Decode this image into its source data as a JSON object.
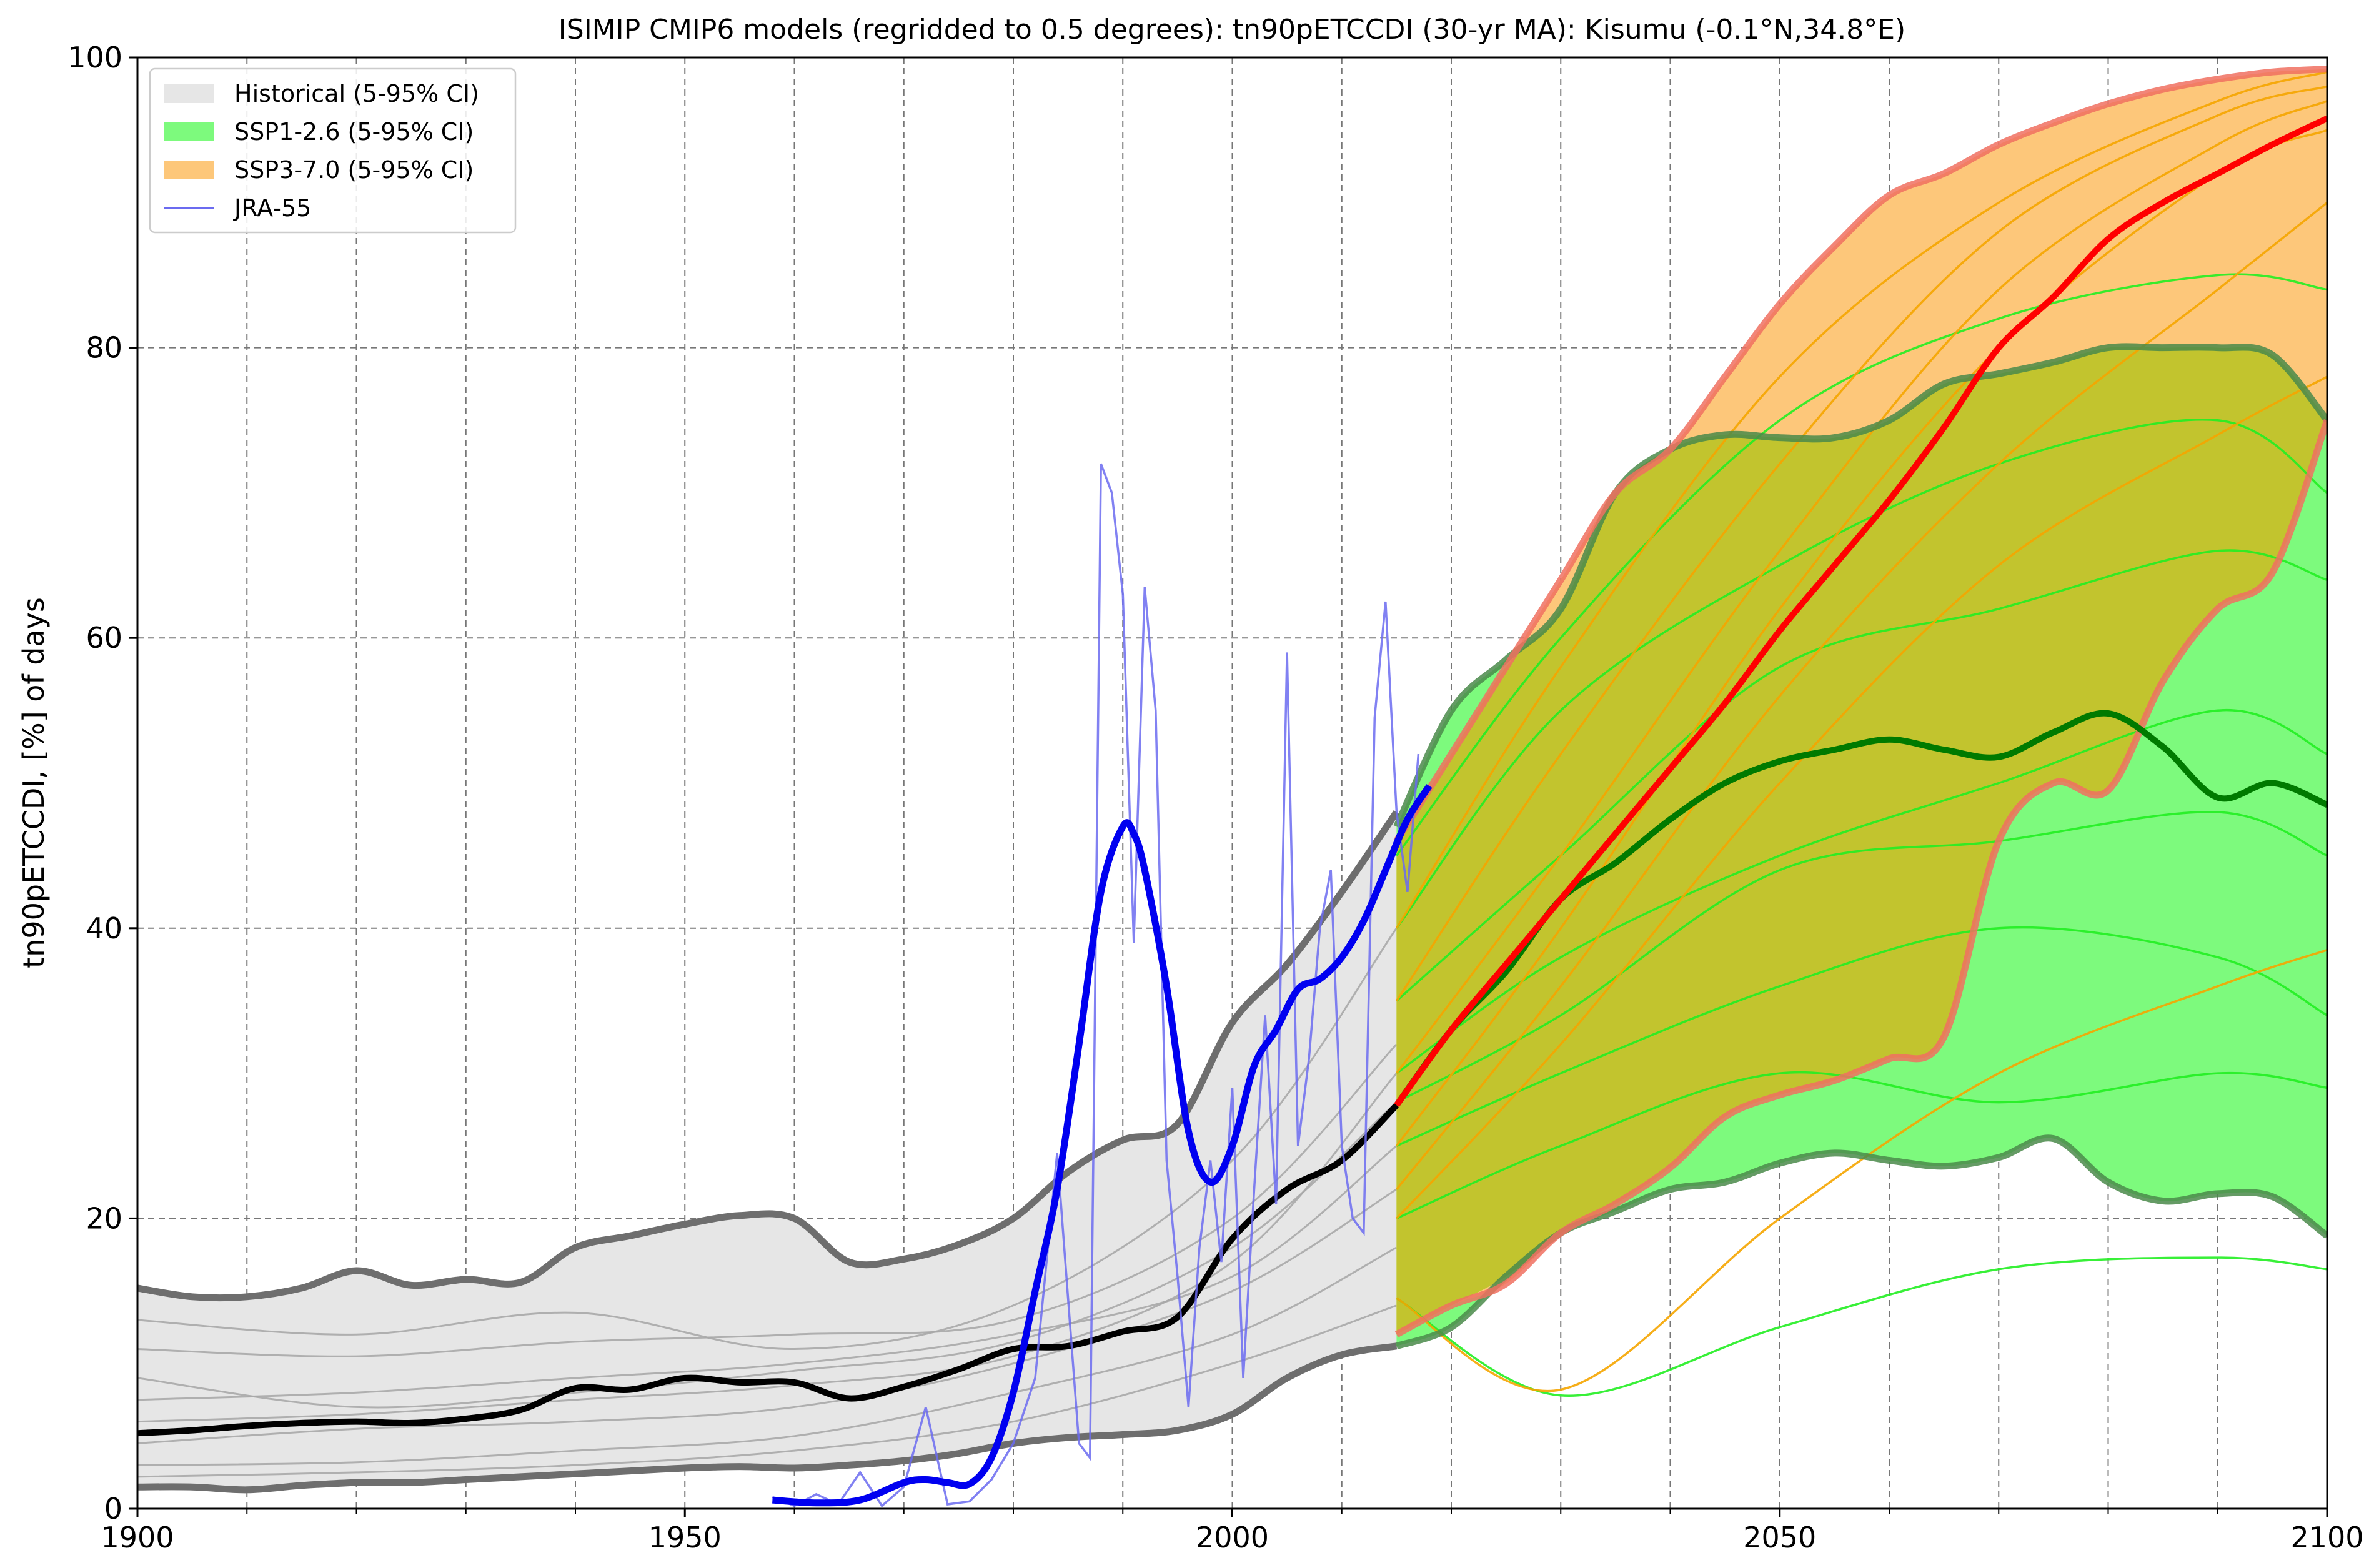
{
  "chart_data": {
    "type": "area",
    "title": "ISIMIP CMIP6 models (regridded to 0.5 degrees): tn90pETCCDI (30-yr MA): Kisumu (-0.1°N,34.8°E)",
    "xlabel": "",
    "ylabel": "tn90pETCCDI, [%] of days",
    "xlim": [
      1900,
      2100
    ],
    "ylim": [
      0,
      100
    ],
    "xticks": [
      1900,
      1950,
      2000,
      2050,
      2100
    ],
    "yticks": [
      0,
      20,
      40,
      60,
      80,
      100
    ],
    "x_minor_grid_step": 10,
    "grid": true,
    "legend_position": "top-left",
    "legend": [
      {
        "label": "Historical (5-95% CI)",
        "kind": "patch",
        "color": "#e6e6e6"
      },
      {
        "label": "SSP1-2.6 (5-95% CI)",
        "kind": "patch",
        "color": "#7dfa7d"
      },
      {
        "label": "SSP3-7.0 (5-95% CI)",
        "kind": "patch",
        "color": "#fdc77a"
      },
      {
        "label": "JRA-55",
        "kind": "line",
        "color": "#6b6bf0"
      }
    ],
    "colors": {
      "historical_fill": "#e6e6e6",
      "historical_edge": "#6e6e6e",
      "historical_members": "#a8a8a8",
      "historical_median": "#000000",
      "ssp126_fill": "#7dfa7d",
      "ssp126_edge": "#4a8a4a",
      "ssp126_members": "#22ee22",
      "ssp126_median": "#007a00",
      "ssp370_fill": "#fdc77a",
      "ssp370_edge": "#f07060",
      "ssp370_members": "#f5a500",
      "ssp370_median": "#ff0000",
      "overlap_fill": "#c2c42e",
      "jra55_raw": "#6b6bf0",
      "jra55_smooth": "#0000f0"
    },
    "historical": {
      "x": [
        1900,
        1905,
        1910,
        1915,
        1920,
        1925,
        1930,
        1935,
        1940,
        1945,
        1950,
        1955,
        1960,
        1965,
        1970,
        1975,
        1980,
        1985,
        1990,
        1995,
        2000,
        2005,
        2010,
        2015
      ],
      "p5": [
        1.5,
        1.5,
        1.3,
        1.6,
        1.8,
        1.8,
        2.0,
        2.2,
        2.4,
        2.6,
        2.8,
        2.9,
        2.8,
        3.0,
        3.3,
        3.8,
        4.5,
        4.9,
        5.1,
        5.4,
        6.5,
        9.0,
        10.6,
        11.2
      ],
      "p95": [
        15.2,
        14.6,
        14.6,
        15.2,
        16.4,
        15.4,
        15.8,
        15.6,
        18.0,
        18.8,
        19.6,
        20.2,
        20.0,
        17.0,
        17.2,
        18.2,
        20.0,
        23.2,
        25.4,
        26.5,
        33.5,
        37.5,
        42.5,
        48.0
      ],
      "median": [
        5.2,
        5.4,
        5.7,
        5.9,
        6.0,
        5.9,
        6.2,
        6.8,
        8.3,
        8.2,
        9.0,
        8.7,
        8.7,
        7.6,
        8.4,
        9.6,
        11.0,
        11.2,
        12.2,
        13.2,
        18.6,
        22.0,
        24.0,
        27.8
      ]
    },
    "ssp126": {
      "x": [
        2015,
        2020,
        2025,
        2030,
        2035,
        2040,
        2045,
        2050,
        2055,
        2060,
        2065,
        2070,
        2075,
        2080,
        2085,
        2090,
        2095,
        2100
      ],
      "p5": [
        11.2,
        12.5,
        16.0,
        19.0,
        20.5,
        22.0,
        22.5,
        23.8,
        24.5,
        24.0,
        23.6,
        24.2,
        25.5,
        22.5,
        21.2,
        21.7,
        21.5,
        18.8
      ],
      "p95": [
        47.0,
        55.0,
        58.5,
        62.0,
        70.0,
        73.0,
        74.0,
        73.8,
        73.8,
        75.0,
        77.5,
        78.2,
        79.0,
        80.0,
        80.0,
        80.0,
        79.5,
        75.0
      ],
      "median": [
        27.8,
        33.0,
        37.0,
        42.0,
        44.5,
        47.5,
        50.0,
        51.5,
        52.3,
        53.0,
        52.3,
        51.8,
        53.5,
        54.8,
        52.5,
        49.0,
        50.0,
        48.5
      ]
    },
    "ssp370": {
      "x": [
        2015,
        2020,
        2025,
        2030,
        2035,
        2040,
        2045,
        2050,
        2055,
        2060,
        2065,
        2070,
        2075,
        2080,
        2085,
        2090,
        2095,
        2100
      ],
      "p5": [
        12.0,
        14.0,
        15.5,
        19.0,
        21.0,
        23.5,
        27.0,
        28.5,
        29.5,
        31.0,
        32.5,
        46.0,
        50.0,
        49.5,
        57.0,
        62.0,
        64.5,
        75.0
      ],
      "p95": [
        46.0,
        52.0,
        58.0,
        64.0,
        70.0,
        73.0,
        78.0,
        83.0,
        87.0,
        90.5,
        92.0,
        94.0,
        95.5,
        96.8,
        97.8,
        98.5,
        99.0,
        99.2
      ],
      "median": [
        27.8,
        33.0,
        37.5,
        42.0,
        46.5,
        51.0,
        55.5,
        60.5,
        65.0,
        69.5,
        74.5,
        80.0,
        83.5,
        87.5,
        90.0,
        92.0,
        94.0,
        95.8
      ]
    },
    "jra55": {
      "x": [
        1958,
        1960,
        1962,
        1964,
        1966,
        1968,
        1970,
        1972,
        1974,
        1976,
        1978,
        1980,
        1982,
        1984,
        1986,
        1987,
        1988,
        1989,
        1990,
        1991,
        1992,
        1993,
        1994,
        1995,
        1996,
        1997,
        1998,
        1999,
        2000,
        2001,
        2002,
        2003,
        2004,
        2005,
        2006,
        2007,
        2008,
        2009,
        2010,
        2011,
        2012,
        2013,
        2014,
        2015,
        2016,
        2017
      ],
      "values": [
        0.8,
        0.2,
        1.0,
        0.3,
        2.5,
        0.2,
        1.5,
        7.0,
        0.3,
        0.5,
        2.0,
        4.5,
        9.0,
        24.5,
        4.5,
        3.5,
        72.0,
        70.0,
        63.0,
        39.0,
        63.5,
        55.0,
        24.0,
        16.0,
        7.0,
        18.0,
        24.0,
        17.0,
        29.0,
        9.0,
        22.0,
        34.0,
        21.0,
        59.0,
        25.0,
        31.0,
        40.0,
        44.0,
        25.0,
        20.0,
        19.0,
        54.5,
        62.5,
        48.0,
        42.5,
        52.0
      ]
    },
    "jra55_smooth": {
      "x": [
        1958,
        1962,
        1966,
        1970,
        1972,
        1974,
        1976,
        1978,
        1980,
        1982,
        1984,
        1986,
        1988,
        1990,
        1991,
        1992,
        1994,
        1996,
        1998,
        2000,
        2002,
        2004,
        2006,
        2008,
        2010,
        2012,
        2014,
        2016,
        2018
      ],
      "values": [
        0.6,
        0.4,
        0.6,
        1.8,
        2.0,
        1.8,
        1.7,
        3.5,
        8.0,
        15.0,
        22.0,
        32.0,
        42.5,
        47.0,
        46.5,
        44.0,
        36.0,
        26.0,
        22.5,
        25.0,
        30.5,
        33.0,
        35.8,
        36.5,
        38.0,
        40.5,
        44.0,
        47.5,
        49.8
      ]
    },
    "historical_members": [
      {
        "x": [
          1900,
          1920,
          1940,
          1960,
          1980,
          2000,
          2015
        ],
        "values": [
          3.0,
          3.2,
          4.0,
          5.0,
          8.0,
          12.0,
          18.0
        ]
      },
      {
        "x": [
          1900,
          1920,
          1940,
          1960,
          1980,
          2000,
          2015
        ],
        "values": [
          7.5,
          8.0,
          9.0,
          10.0,
          12.0,
          16.0,
          25.0
        ]
      },
      {
        "x": [
          1900,
          1920,
          1940,
          1960,
          1980,
          2000,
          2015
        ],
        "values": [
          11.0,
          10.5,
          11.5,
          12.0,
          13.0,
          20.0,
          32.0
        ]
      },
      {
        "x": [
          1900,
          1920,
          1940,
          1960,
          1980,
          2000,
          2015
        ],
        "values": [
          4.5,
          5.5,
          6.0,
          7.0,
          10.0,
          15.0,
          22.0
        ]
      },
      {
        "x": [
          1900,
          1920,
          1940,
          1960,
          1980,
          2000,
          2015
        ],
        "values": [
          9.0,
          7.0,
          8.0,
          9.5,
          11.5,
          18.0,
          28.0
        ]
      },
      {
        "x": [
          1900,
          1920,
          1940,
          1960,
          1980,
          2000,
          2015
        ],
        "values": [
          13.0,
          12.0,
          13.5,
          11.0,
          14.0,
          24.0,
          40.0
        ]
      },
      {
        "x": [
          1900,
          1920,
          1940,
          1960,
          1980,
          2000,
          2015
        ],
        "values": [
          2.2,
          2.5,
          3.0,
          4.0,
          6.0,
          10.0,
          14.0
        ]
      },
      {
        "x": [
          1900,
          1920,
          1940,
          1960,
          1980,
          2000,
          2015
        ],
        "values": [
          6.0,
          6.5,
          7.5,
          8.5,
          10.5,
          17.0,
          30.0
        ]
      }
    ],
    "ssp126_members": [
      {
        "x": [
          2015,
          2030,
          2050,
          2070,
          2090,
          2100
        ],
        "values": [
          14.5,
          7.8,
          12.5,
          16.5,
          17.3,
          16.5
        ]
      },
      {
        "x": [
          2015,
          2030,
          2050,
          2070,
          2090,
          2100
        ],
        "values": [
          20.0,
          25.0,
          30.0,
          28.0,
          30.0,
          29.0
        ]
      },
      {
        "x": [
          2015,
          2030,
          2050,
          2070,
          2090,
          2100
        ],
        "values": [
          30.0,
          38.0,
          45.0,
          50.0,
          55.0,
          52.0
        ]
      },
      {
        "x": [
          2015,
          2030,
          2050,
          2070,
          2090,
          2100
        ],
        "values": [
          40.0,
          55.0,
          65.0,
          72.0,
          75.0,
          70.0
        ]
      },
      {
        "x": [
          2015,
          2030,
          2050,
          2070,
          2090,
          2100
        ],
        "values": [
          25.0,
          30.0,
          36.0,
          40.0,
          38.0,
          34.0
        ]
      },
      {
        "x": [
          2015,
          2030,
          2050,
          2070,
          2090,
          2100
        ],
        "values": [
          35.0,
          45.0,
          58.0,
          62.0,
          66.0,
          64.0
        ]
      },
      {
        "x": [
          2015,
          2030,
          2050,
          2070,
          2090,
          2100
        ],
        "values": [
          45.0,
          60.0,
          75.0,
          82.0,
          85.0,
          84.0
        ]
      },
      {
        "x": [
          2015,
          2030,
          2050,
          2070,
          2090,
          2100
        ],
        "values": [
          28.0,
          34.0,
          44.0,
          46.0,
          48.0,
          45.0
        ]
      }
    ],
    "ssp370_members": [
      {
        "x": [
          2015,
          2030,
          2050,
          2070,
          2090,
          2100
        ],
        "values": [
          14.5,
          8.2,
          20.0,
          30.0,
          36.0,
          38.5
        ]
      },
      {
        "x": [
          2015,
          2030,
          2050,
          2070,
          2090,
          2100
        ],
        "values": [
          25.0,
          40.0,
          62.0,
          80.0,
          92.0,
          95.0
        ]
      },
      {
        "x": [
          2015,
          2030,
          2050,
          2070,
          2090,
          2100
        ],
        "values": [
          35.0,
          52.0,
          72.0,
          88.0,
          96.0,
          98.0
        ]
      },
      {
        "x": [
          2015,
          2030,
          2050,
          2070,
          2090,
          2100
        ],
        "values": [
          20.0,
          32.0,
          50.0,
          65.0,
          74.0,
          78.0
        ]
      },
      {
        "x": [
          2015,
          2030,
          2050,
          2070,
          2090,
          2100
        ],
        "values": [
          30.0,
          45.0,
          66.0,
          84.0,
          94.0,
          97.0
        ]
      },
      {
        "x": [
          2015,
          2030,
          2050,
          2070,
          2090,
          2100
        ],
        "values": [
          40.0,
          58.0,
          78.0,
          90.0,
          97.0,
          99.0
        ]
      },
      {
        "x": [
          2015,
          2030,
          2050,
          2070,
          2090,
          2100
        ],
        "values": [
          22.0,
          36.0,
          56.0,
          72.0,
          84.0,
          90.0
        ]
      }
    ]
  }
}
